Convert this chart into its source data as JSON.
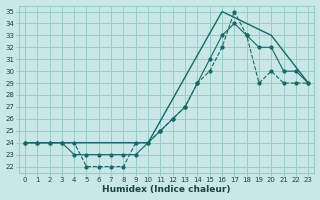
{
  "xlabel": "Humidex (Indice chaleur)",
  "xlim": [
    -0.5,
    23.5
  ],
  "ylim": [
    21.5,
    35.5
  ],
  "yticks": [
    22,
    23,
    24,
    25,
    26,
    27,
    28,
    29,
    30,
    31,
    32,
    33,
    34,
    35
  ],
  "xticks": [
    0,
    1,
    2,
    3,
    4,
    5,
    6,
    7,
    8,
    9,
    10,
    11,
    12,
    13,
    14,
    15,
    16,
    17,
    18,
    19,
    20,
    21,
    22,
    23
  ],
  "bg_color": "#c8e8e8",
  "grid_color": "#99cccc",
  "line_color": "#1a6666",
  "line1_x": [
    0,
    1,
    2,
    3,
    4,
    5,
    6,
    7,
    8,
    9,
    10,
    11,
    12,
    13,
    14,
    15,
    16,
    17,
    18,
    19,
    20,
    21,
    22,
    23
  ],
  "line1_y": [
    24,
    24,
    24,
    24,
    24,
    22,
    22,
    22,
    22,
    24,
    24,
    25,
    26,
    27,
    29,
    30,
    32,
    35,
    33,
    29,
    30,
    29,
    29,
    29
  ],
  "line2_x": [
    0,
    1,
    2,
    3,
    4,
    5,
    6,
    7,
    8,
    9,
    10,
    11,
    12,
    13,
    14,
    15,
    16,
    17,
    18,
    19,
    20,
    21,
    22,
    23
  ],
  "line2_y": [
    24,
    24,
    24,
    24,
    23,
    23,
    23,
    23,
    23,
    23,
    24,
    25,
    26,
    27,
    29,
    31,
    33,
    34,
    33,
    32,
    32,
    30,
    30,
    29
  ],
  "line3_x": [
    0,
    3,
    10,
    16,
    20,
    23
  ],
  "line3_y": [
    24,
    24,
    24,
    35,
    33,
    29
  ]
}
